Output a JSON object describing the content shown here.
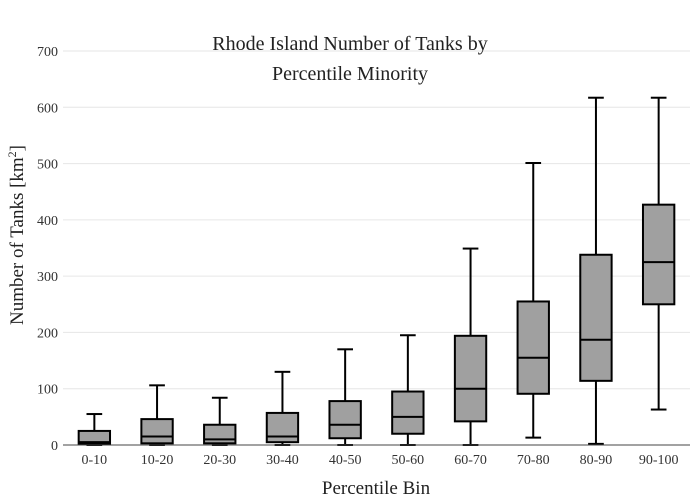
{
  "chart_data": {
    "type": "box",
    "title_line1": "Rhode Island Number of Tanks by",
    "title_line2": "Percentile Minority",
    "xlabel": "Percentile Bin",
    "ylabel_main": "Number of Tanks  [km",
    "ylabel_sup": "2",
    "ylabel_end": "]",
    "ylim": [
      0,
      700
    ],
    "yticks": [
      0,
      100,
      200,
      300,
      400,
      500,
      600,
      700
    ],
    "grid": true,
    "box_color": "#a0a0a0",
    "categories": [
      "0-10",
      "10-20",
      "20-30",
      "30-40",
      "40-50",
      "50-60",
      "60-70",
      "70-80",
      "80-90",
      "90-100"
    ],
    "boxes": [
      {
        "min": 0,
        "q1": 2,
        "median": 5,
        "q3": 25,
        "max": 55
      },
      {
        "min": 0,
        "q1": 3,
        "median": 15,
        "q3": 46,
        "max": 106
      },
      {
        "min": 0,
        "q1": 3,
        "median": 10,
        "q3": 36,
        "max": 84
      },
      {
        "min": 0,
        "q1": 5,
        "median": 15,
        "q3": 57,
        "max": 130
      },
      {
        "min": 0,
        "q1": 12,
        "median": 36,
        "q3": 78,
        "max": 170
      },
      {
        "min": 0,
        "q1": 20,
        "median": 50,
        "q3": 95,
        "max": 195
      },
      {
        "min": 0,
        "q1": 42,
        "median": 100,
        "q3": 194,
        "max": 349
      },
      {
        "min": 13,
        "q1": 91,
        "median": 155,
        "q3": 255,
        "max": 501
      },
      {
        "min": 2,
        "q1": 114,
        "median": 187,
        "q3": 338,
        "max": 617
      },
      {
        "min": 63,
        "q1": 250,
        "median": 325,
        "q3": 427,
        "max": 617
      }
    ]
  }
}
